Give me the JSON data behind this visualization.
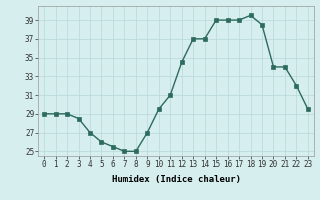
{
  "x": [
    0,
    1,
    2,
    3,
    4,
    5,
    6,
    7,
    8,
    9,
    10,
    11,
    12,
    13,
    14,
    15,
    16,
    17,
    18,
    19,
    20,
    21,
    22,
    23
  ],
  "y": [
    29,
    29,
    29,
    28.5,
    27,
    26,
    25.5,
    25,
    25,
    27,
    29.5,
    31,
    34.5,
    37,
    37,
    39,
    39,
    39,
    39.5,
    38.5,
    34,
    34,
    32,
    29.5
  ],
  "line_color": "#2d6b5e",
  "marker_color": "#2d6b5e",
  "bg_color": "#d7eeee",
  "grid_color": "#b8d8d8",
  "xlabel": "Humidex (Indice chaleur)",
  "xlim": [
    -0.5,
    23.5
  ],
  "ylim": [
    24.5,
    40.5
  ],
  "yticks": [
    25,
    27,
    29,
    31,
    33,
    35,
    37,
    39
  ],
  "xticks": [
    0,
    1,
    2,
    3,
    4,
    5,
    6,
    7,
    8,
    9,
    10,
    11,
    12,
    13,
    14,
    15,
    16,
    17,
    18,
    19,
    20,
    21,
    22,
    23
  ],
  "xtick_labels": [
    "0",
    "1",
    "2",
    "3",
    "4",
    "5",
    "6",
    "7",
    "8",
    "9",
    "10",
    "11",
    "12",
    "13",
    "14",
    "15",
    "16",
    "17",
    "18",
    "19",
    "20",
    "21",
    "22",
    "23"
  ],
  "axis_fontsize": 6.5,
  "tick_fontsize": 5.5,
  "linewidth": 1.0,
  "markersize": 2.5
}
